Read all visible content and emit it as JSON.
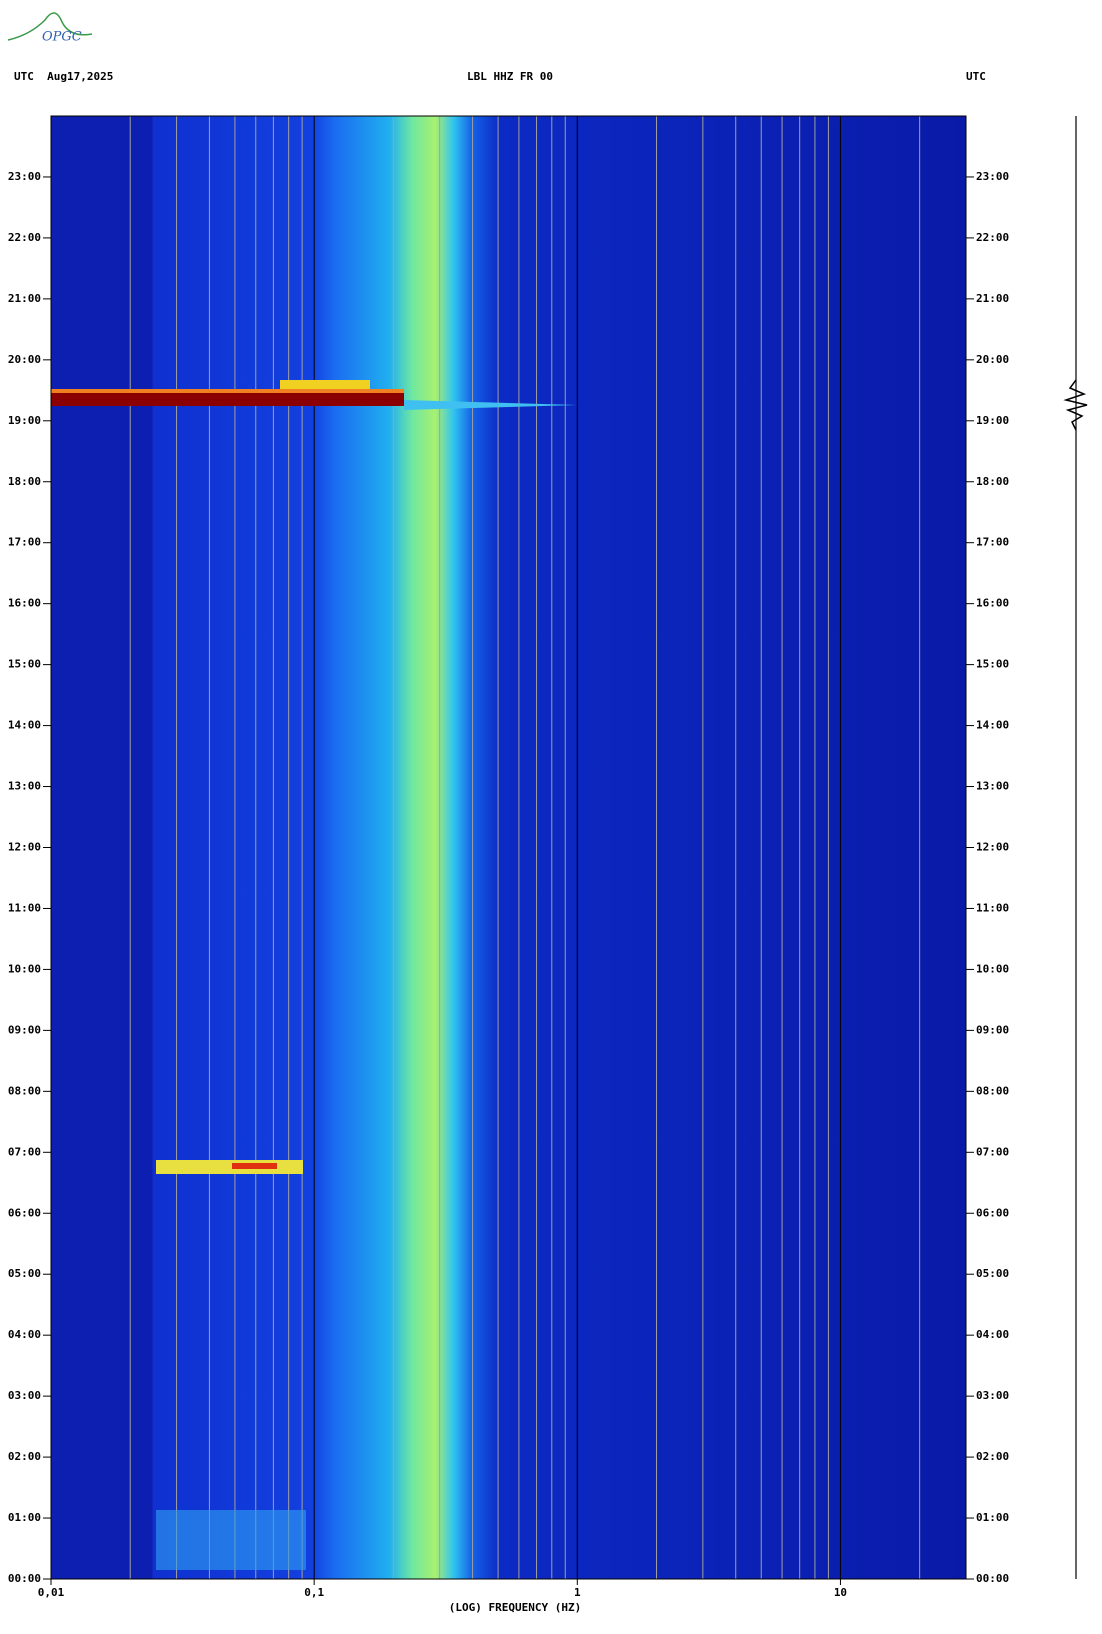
{
  "header": {
    "logo": "OPGC",
    "left": "UTC  Aug17,2025",
    "center": "LBL HHZ FR 00",
    "right": "UTC"
  },
  "chart_data": {
    "type": "spectrogram",
    "xlabel": "(LOG) FREQUENCY (HZ)",
    "xscale": "log",
    "xlim": [
      0.01,
      30
    ],
    "xticks": [
      {
        "value": 0.01,
        "label": "0,01"
      },
      {
        "value": 0.1,
        "label": "0,1"
      },
      1,
      10
    ],
    "xgrid": [
      0.02,
      0.03,
      0.04,
      0.05,
      0.06,
      0.07,
      0.08,
      0.09,
      0.2,
      0.3,
      0.4,
      0.5,
      0.6,
      0.7,
      0.8,
      0.9,
      2,
      3,
      4,
      5,
      6,
      7,
      8,
      9,
      20
    ],
    "ylim": [
      0,
      24
    ],
    "yticks": [
      {
        "value": 0,
        "label": "00:00"
      },
      {
        "value": 1,
        "label": "01:00"
      },
      {
        "value": 2,
        "label": "02:00"
      },
      {
        "value": 3,
        "label": "03:00"
      },
      {
        "value": 4,
        "label": "04:00"
      },
      {
        "value": 5,
        "label": "05:00"
      },
      {
        "value": 6,
        "label": "06:00"
      },
      {
        "value": 7,
        "label": "07:00"
      },
      {
        "value": 8,
        "label": "08:00"
      },
      {
        "value": 9,
        "label": "09:00"
      },
      {
        "value": 10,
        "label": "10:00"
      },
      {
        "value": 11,
        "label": "11:00"
      },
      {
        "value": 12,
        "label": "12:00"
      },
      {
        "value": 13,
        "label": "13:00"
      },
      {
        "value": 14,
        "label": "14:00"
      },
      {
        "value": 15,
        "label": "15:00"
      },
      {
        "value": 16,
        "label": "16:00"
      },
      {
        "value": 17,
        "label": "17:00"
      },
      {
        "value": 18,
        "label": "18:00"
      },
      {
        "value": 19,
        "label": "19:00"
      },
      {
        "value": 20,
        "label": "20:00"
      },
      {
        "value": 21,
        "label": "21:00"
      },
      {
        "value": 22,
        "label": "22:00"
      },
      {
        "value": 23,
        "label": "23:00"
      }
    ]
  }
}
